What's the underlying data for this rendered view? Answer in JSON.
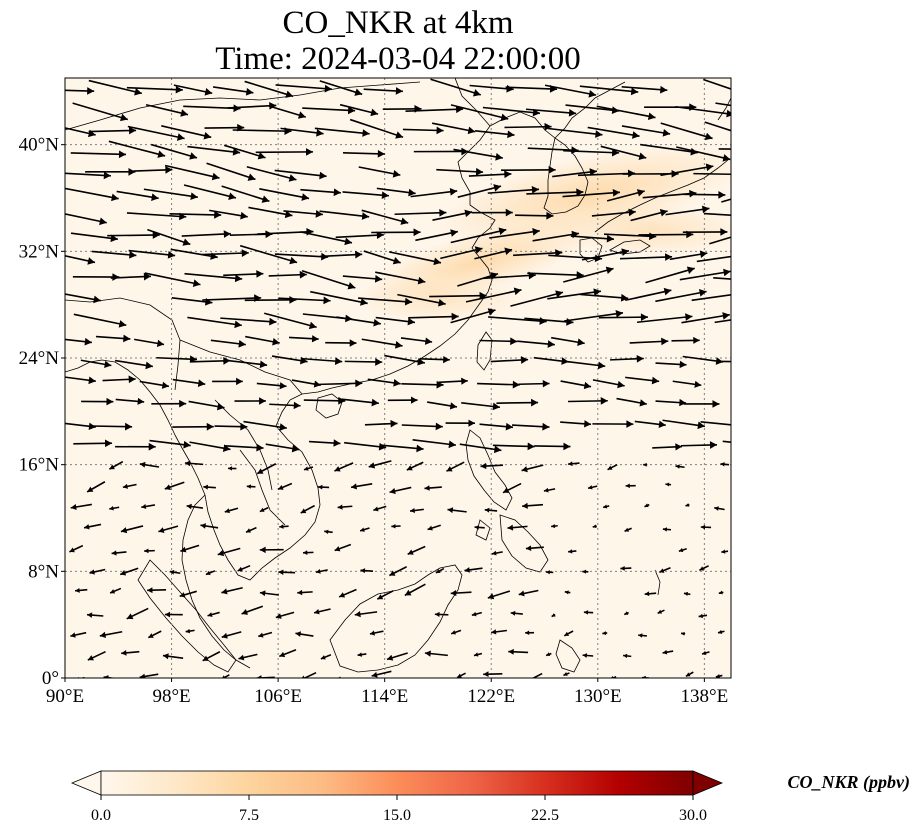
{
  "title_line1": "CO_NKR at 4km",
  "title_line2": "Time: 2024-03-04 22:00:00",
  "colors": {
    "background": "#fff6ea",
    "enhanced": "#fde2bd",
    "coast": "#000000",
    "grid": "#808080",
    "vector": "#000000"
  },
  "map": {
    "lon_range": [
      90,
      140
    ],
    "lat_range": [
      0,
      45
    ],
    "lon_ticks": [
      {
        "value": 90,
        "label": "90°E"
      },
      {
        "value": 98,
        "label": "98°E"
      },
      {
        "value": 106,
        "label": "106°E"
      },
      {
        "value": 114,
        "label": "114°E"
      },
      {
        "value": 122,
        "label": "122°E"
      },
      {
        "value": 130,
        "label": "130°E"
      },
      {
        "value": 138,
        "label": "138°E"
      }
    ],
    "lat_ticks": [
      {
        "value": 0,
        "label": "0°"
      },
      {
        "value": 8,
        "label": "8°N"
      },
      {
        "value": 16,
        "label": "16°N"
      },
      {
        "value": 24,
        "label": "24°N"
      },
      {
        "value": 32,
        "label": "32°N"
      },
      {
        "value": 40,
        "label": "40°N"
      }
    ],
    "grid": true
  },
  "colorbar": {
    "label": "CO_NKR (ppbv)",
    "min": 0,
    "max": 30,
    "ticks": [
      "0.0",
      "7.5",
      "15.0",
      "22.5",
      "30.0"
    ],
    "extend": "both",
    "colormap": "OrRd",
    "stops": [
      "#fff7ec",
      "#fee8c8",
      "#fdd49e",
      "#fdbb84",
      "#fc8d59",
      "#ef6548",
      "#d7301f",
      "#b30000",
      "#7f0000"
    ]
  }
}
